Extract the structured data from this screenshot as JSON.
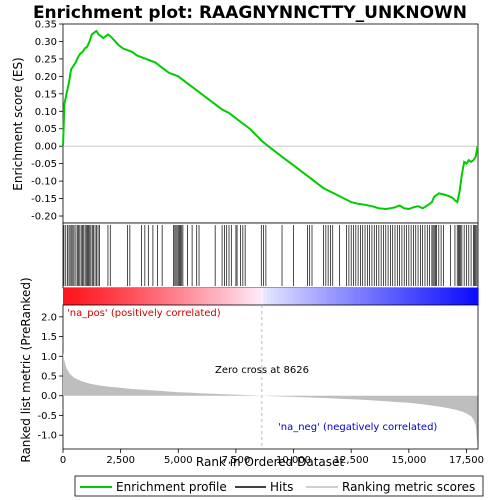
{
  "chart_data": {
    "type": "line",
    "title": "Enrichment plot: RAAGNYNNCTTY_UNKNOWN",
    "xlabel": "Rank in Ordered Dataset",
    "ylabel_top": "Enrichment score (ES)",
    "ylabel_bottom": "Ranked list metric (PreRanked)",
    "x_ticks": [
      "0",
      "2,500",
      "5,000",
      "7,500",
      "10,000",
      "12,500",
      "15,000",
      "17,500"
    ],
    "x_tick_values": [
      0,
      2500,
      5000,
      7500,
      10000,
      12500,
      15000,
      17500
    ],
    "xlim": [
      0,
      18000
    ],
    "es_ylim": [
      -0.22,
      0.35
    ],
    "es_y_ticks": [
      "0.35",
      "0.30",
      "0.25",
      "0.20",
      "0.15",
      "0.10",
      "0.05",
      "0.00",
      "-0.05",
      "-0.10",
      "-0.15",
      "-0.20"
    ],
    "es_y_tick_values": [
      0.35,
      0.3,
      0.25,
      0.2,
      0.15,
      0.1,
      0.05,
      0.0,
      -0.05,
      -0.1,
      -0.15,
      -0.2
    ],
    "metric_ylim": [
      -1.35,
      2.3
    ],
    "metric_y_ticks": [
      "2.0",
      "1.5",
      "1.0",
      "0.5",
      "0.0",
      "-0.5",
      "-1.0"
    ],
    "metric_y_tick_values": [
      2.0,
      1.5,
      1.0,
      0.5,
      0.0,
      -0.5,
      -1.0
    ],
    "enrichment_profile": {
      "x": [
        0,
        60,
        150,
        250,
        350,
        450,
        550,
        650,
        750,
        850,
        950,
        1050,
        1150,
        1250,
        1350,
        1450,
        1550,
        1650,
        1750,
        1850,
        1950,
        2050,
        2200,
        2400,
        2600,
        2800,
        3000,
        3200,
        3400,
        3600,
        3800,
        4000,
        4200,
        4400,
        4600,
        4800,
        5000,
        5200,
        5400,
        5600,
        5800,
        6000,
        6300,
        6600,
        6900,
        7200,
        7500,
        7800,
        8100,
        8400,
        8626,
        8900,
        9200,
        9500,
        9800,
        10100,
        10400,
        10700,
        11000,
        11300,
        11600,
        11900,
        12200,
        12500,
        12800,
        13100,
        13400,
        13700,
        14000,
        14200,
        14400,
        14600,
        14800,
        15000,
        15200,
        15400,
        15600,
        15800,
        16000,
        16100,
        16200,
        16300,
        16500,
        16700,
        16900,
        17000,
        17100,
        17200,
        17300,
        17400,
        17500,
        17600,
        17700,
        17800,
        17900,
        17980
      ],
      "y": [
        0.0,
        0.12,
        0.15,
        0.18,
        0.22,
        0.23,
        0.24,
        0.255,
        0.265,
        0.27,
        0.28,
        0.285,
        0.3,
        0.32,
        0.325,
        0.33,
        0.32,
        0.315,
        0.31,
        0.315,
        0.32,
        0.315,
        0.305,
        0.29,
        0.28,
        0.275,
        0.27,
        0.26,
        0.255,
        0.25,
        0.245,
        0.24,
        0.23,
        0.22,
        0.21,
        0.205,
        0.2,
        0.19,
        0.18,
        0.17,
        0.16,
        0.15,
        0.135,
        0.12,
        0.105,
        0.095,
        0.08,
        0.065,
        0.05,
        0.03,
        0.015,
        0.0,
        -0.015,
        -0.03,
        -0.045,
        -0.06,
        -0.075,
        -0.09,
        -0.105,
        -0.12,
        -0.13,
        -0.14,
        -0.15,
        -0.16,
        -0.165,
        -0.168,
        -0.172,
        -0.178,
        -0.18,
        -0.178,
        -0.175,
        -0.17,
        -0.178,
        -0.18,
        -0.175,
        -0.172,
        -0.178,
        -0.17,
        -0.16,
        -0.145,
        -0.14,
        -0.135,
        -0.138,
        -0.142,
        -0.148,
        -0.155,
        -0.16,
        -0.13,
        -0.08,
        -0.045,
        -0.05,
        -0.04,
        -0.045,
        -0.04,
        -0.03,
        0.0
      ]
    },
    "hits": [
      40,
      120,
      200,
      260,
      310,
      380,
      430,
      480,
      560,
      620,
      680,
      730,
      790,
      850,
      900,
      960,
      1010,
      1060,
      1110,
      1160,
      1210,
      1270,
      1330,
      1390,
      1450,
      1520,
      1580,
      1950,
      2050,
      2800,
      2900,
      3400,
      3550,
      3700,
      3900,
      4100,
      4300,
      4800,
      4850,
      4900,
      4950,
      5000,
      5050,
      5100,
      5150,
      5200,
      5400,
      5600,
      5800,
      5900,
      6600,
      6900,
      7000,
      7100,
      7200,
      7300,
      7500,
      7550,
      7700,
      7800,
      7900,
      8600,
      8700,
      8800,
      9500,
      10000,
      10600,
      10700,
      10800,
      11300,
      11400,
      11500,
      11600,
      11700,
      12000,
      12300,
      12400,
      12500,
      12600,
      12700,
      12800,
      12900,
      13000,
      13100,
      13200,
      13300,
      13400,
      13500,
      13600,
      13700,
      13800,
      13900,
      14000,
      14100,
      14200,
      14300,
      14400,
      14500,
      14600,
      14700,
      14800,
      14900,
      15000,
      15100,
      15200,
      15300,
      15400,
      15500,
      15600,
      15700,
      15800,
      15900,
      16000,
      16050,
      16100,
      16150,
      16200,
      16300,
      16400,
      16500,
      16800,
      17000,
      17100,
      17150,
      17200,
      17250,
      17300,
      17400,
      17500,
      17600,
      17700,
      17800,
      17850,
      17900,
      17950
    ],
    "ranked_metric": {
      "x": [
        0,
        50,
        150,
        300,
        500,
        800,
        1200,
        1600,
        2000,
        2500,
        3000,
        3500,
        4000,
        4500,
        5000,
        5500,
        6000,
        6500,
        7000,
        7500,
        8000,
        8626,
        9000,
        9500,
        10000,
        10500,
        11000,
        11500,
        12000,
        12500,
        13000,
        13500,
        14000,
        14500,
        15000,
        15500,
        16000,
        16500,
        17000,
        17300,
        17500,
        17700,
        17800,
        17900,
        17980
      ],
      "y": [
        1.1,
        0.9,
        0.7,
        0.55,
        0.45,
        0.37,
        0.3,
        0.26,
        0.23,
        0.2,
        0.17,
        0.15,
        0.13,
        0.11,
        0.09,
        0.08,
        0.06,
        0.05,
        0.04,
        0.03,
        0.015,
        0.0,
        -0.01,
        -0.02,
        -0.03,
        -0.04,
        -0.05,
        -0.06,
        -0.075,
        -0.09,
        -0.1,
        -0.12,
        -0.14,
        -0.16,
        -0.18,
        -0.21,
        -0.25,
        -0.29,
        -0.35,
        -0.4,
        -0.45,
        -0.52,
        -0.6,
        -0.75,
        -1.25
      ]
    },
    "zero_cross_x": 8626,
    "annotations": {
      "pos_label": "'na_pos' (positively correlated)",
      "neg_label": "'na_neg' (negatively correlated)",
      "zero_cross_label": "Zero cross at 8626"
    },
    "legend": {
      "placement": "bottom",
      "entries": [
        "Enrichment profile",
        "Hits",
        "Ranking metric scores"
      ]
    },
    "colors": {
      "profile": "#00cc00",
      "hits": "#000000",
      "metric_fill": "#bebebe",
      "pos_label": "#cc0000",
      "neg_label": "#0000cc",
      "zero_line": "#c0c0c0",
      "dashed": "#aaaaaa"
    }
  }
}
